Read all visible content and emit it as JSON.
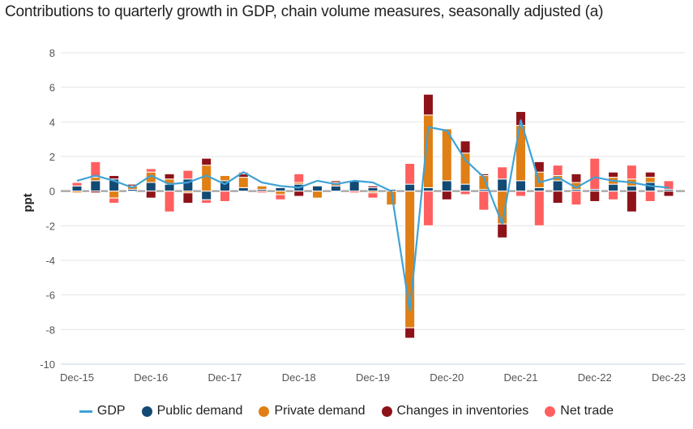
{
  "chart_data": {
    "type": "bar",
    "stacked": true,
    "title": "Contributions to quarterly growth in GDP, chain volume measures, seasonally adjusted (a)",
    "xlabel": "",
    "ylabel": "ppt",
    "ylim": [
      -10,
      8
    ],
    "yticks": [
      8,
      6,
      4,
      2,
      0,
      -2,
      -4,
      -6,
      -8,
      -10
    ],
    "grid": true,
    "legend_position": "bottom",
    "x_tick_labels": [
      "Dec-15",
      "Dec-16",
      "Dec-17",
      "Dec-18",
      "Dec-19",
      "Dec-20",
      "Dec-21",
      "Dec-22",
      "Dec-23"
    ],
    "x": [
      "Dec-15",
      "Mar-16",
      "Jun-16",
      "Sep-16",
      "Dec-16",
      "Mar-17",
      "Jun-17",
      "Sep-17",
      "Dec-17",
      "Mar-18",
      "Jun-18",
      "Sep-18",
      "Dec-18",
      "Mar-19",
      "Jun-19",
      "Sep-19",
      "Dec-19",
      "Mar-20",
      "Jun-20",
      "Sep-20",
      "Dec-20",
      "Mar-21",
      "Jun-21",
      "Sep-21",
      "Dec-21",
      "Mar-22",
      "Jun-22",
      "Sep-22",
      "Dec-22",
      "Mar-23",
      "Jun-23",
      "Sep-23",
      "Dec-23"
    ],
    "colors": {
      "GDP": "#3fa3d6",
      "Public demand": "#134a74",
      "Private demand": "#e07f14",
      "Changes in inventories": "#8e1319",
      "Net trade": "#ff5f5f"
    },
    "series": [
      {
        "name": "Public demand",
        "values": [
          0.3,
          0.6,
          0.7,
          0.1,
          0.5,
          0.4,
          0.7,
          -0.5,
          0.6,
          0.2,
          0.1,
          0.2,
          0.4,
          0.3,
          0.3,
          0.6,
          0.2,
          0.1,
          0.4,
          0.2,
          0.6,
          0.4,
          0.1,
          0.7,
          0.6,
          0.2,
          0.6,
          0.1,
          0.1,
          0.4,
          0.3,
          0.5,
          0.1
        ]
      },
      {
        "name": "Private demand",
        "values": [
          -0.1,
          0.2,
          -0.4,
          0.2,
          0.6,
          0.3,
          -0.1,
          1.5,
          0.3,
          0.6,
          0.2,
          -0.2,
          0.1,
          -0.4,
          0.2,
          0.0,
          -0.1,
          -0.8,
          -7.9,
          4.2,
          3.0,
          1.8,
          0.8,
          -1.9,
          3.2,
          0.9,
          0.3,
          0.4,
          0.0,
          0.4,
          0.4,
          0.3,
          0.0
        ]
      },
      {
        "name": "Changes in inventories",
        "values": [
          0.0,
          -0.1,
          0.2,
          0.1,
          -0.4,
          0.3,
          -0.6,
          0.4,
          0.0,
          0.2,
          0.0,
          0.0,
          -0.3,
          0.0,
          0.1,
          0.0,
          0.1,
          0.0,
          -0.6,
          1.2,
          -0.5,
          0.7,
          0.1,
          -0.8,
          0.8,
          0.6,
          -0.7,
          0.5,
          -0.6,
          0.3,
          -1.2,
          0.3,
          -0.3
        ]
      },
      {
        "name": "Net trade",
        "values": [
          0.2,
          0.9,
          -0.3,
          0.0,
          0.2,
          -1.2,
          0.5,
          -0.2,
          -0.6,
          0.1,
          -0.1,
          -0.3,
          0.5,
          0.0,
          0.0,
          -0.1,
          -0.3,
          0.0,
          1.2,
          -2.0,
          0.0,
          -0.2,
          -1.1,
          0.7,
          -0.3,
          -2.0,
          0.6,
          -0.8,
          1.8,
          -0.5,
          0.8,
          -0.6,
          0.5
        ]
      },
      {
        "name": "GDP",
        "type": "line",
        "values": [
          0.6,
          0.9,
          0.6,
          0.2,
          0.9,
          0.4,
          0.5,
          0.9,
          0.4,
          1.1,
          0.5,
          0.3,
          0.2,
          0.6,
          0.4,
          0.6,
          0.5,
          0.0,
          -6.9,
          3.7,
          3.5,
          1.8,
          0.8,
          -1.9,
          4.1,
          0.5,
          0.8,
          0.2,
          0.8,
          0.6,
          0.5,
          0.3,
          0.2
        ]
      }
    ]
  },
  "legend": {
    "items": [
      {
        "label": "GDP"
      },
      {
        "label": "Public demand"
      },
      {
        "label": "Private demand"
      },
      {
        "label": "Changes in inventories"
      },
      {
        "label": "Net trade"
      }
    ]
  }
}
